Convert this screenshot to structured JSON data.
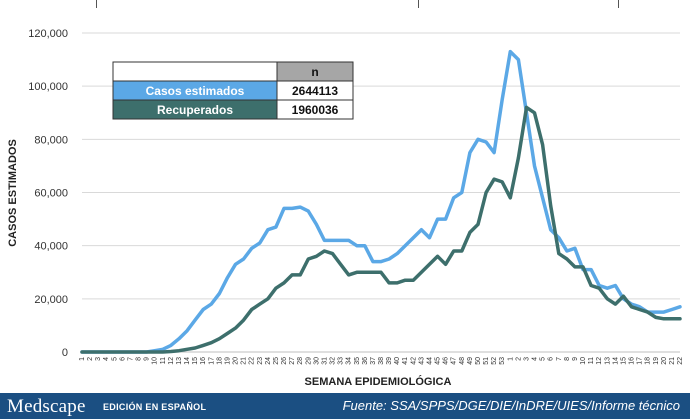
{
  "chart_data": {
    "type": "line",
    "ylabel": "CASOS ESTIMADOS",
    "xlabel": "SEMANA EPIDEMIOLÓGICA",
    "ylim": [
      0,
      120000
    ],
    "y_ticks": [
      "0",
      "20,000",
      "40,000",
      "60,000",
      "80,000",
      "100,000",
      "120,000"
    ],
    "y_tick_values": [
      0,
      20000,
      40000,
      60000,
      80000,
      100000,
      120000
    ],
    "grid": "horizontal",
    "categories": [
      "1",
      "2",
      "3",
      "4",
      "5",
      "6",
      "7",
      "8",
      "9",
      "10",
      "11",
      "12",
      "13",
      "14",
      "15",
      "16",
      "17",
      "18",
      "19",
      "20",
      "21",
      "22",
      "23",
      "24",
      "25",
      "26",
      "27",
      "28",
      "29",
      "30",
      "31",
      "32",
      "33",
      "34",
      "35",
      "36",
      "37",
      "38",
      "39",
      "40",
      "41",
      "42",
      "43",
      "44",
      "45",
      "46",
      "47",
      "48",
      "49",
      "50",
      "51",
      "52",
      "53",
      "1",
      "2",
      "3",
      "4",
      "5",
      "6",
      "7",
      "8",
      "9",
      "10",
      "11",
      "12",
      "13",
      "14",
      "15",
      "16",
      "17",
      "18",
      "19",
      "20",
      "21",
      "22"
    ],
    "series": [
      {
        "name": "Casos estimados",
        "color": "#5ba8e6",
        "values": [
          0,
          0,
          0,
          0,
          0,
          0,
          0,
          0,
          0,
          500,
          1000,
          2500,
          5000,
          8000,
          12000,
          16000,
          18000,
          22000,
          28000,
          33000,
          35000,
          39000,
          41000,
          46000,
          47000,
          54000,
          54000,
          54500,
          53000,
          48000,
          42000,
          42000,
          42000,
          42000,
          40000,
          40000,
          34000,
          34000,
          35000,
          37000,
          40000,
          43000,
          46000,
          43000,
          50000,
          50000,
          58000,
          60000,
          75000,
          80000,
          79000,
          75000,
          95000,
          113000,
          110000,
          90000,
          70000,
          58000,
          46000,
          43000,
          38000,
          39000,
          31000,
          31000,
          25000,
          24000,
          25000,
          20000,
          18000,
          17000,
          15000,
          15000,
          15000,
          16000,
          17000
        ]
      },
      {
        "name": "Recuperados",
        "color": "#3d6f6c",
        "values": [
          0,
          0,
          0,
          0,
          0,
          0,
          0,
          0,
          0,
          0,
          0,
          200,
          500,
          1000,
          1500,
          2500,
          3500,
          5000,
          7000,
          9000,
          12000,
          16000,
          18000,
          20000,
          24000,
          26000,
          29000,
          29000,
          35000,
          36000,
          38000,
          37000,
          33000,
          29000,
          30000,
          30000,
          30000,
          30000,
          26000,
          26000,
          27000,
          27000,
          30000,
          33000,
          36000,
          33000,
          38000,
          38000,
          45000,
          48000,
          60000,
          65000,
          64000,
          58000,
          73000,
          92000,
          90000,
          78000,
          55000,
          37000,
          35000,
          32000,
          32000,
          25000,
          24000,
          20000,
          18000,
          21000,
          17000,
          16000,
          15000,
          13000,
          12500,
          12500,
          12500
        ]
      }
    ],
    "legend_table": {
      "header": "n",
      "rows": [
        {
          "label": "Casos estimados",
          "value": "2644113",
          "color": "#5ba8e6"
        },
        {
          "label": "Recuperados",
          "value": "1960036",
          "color": "#3d6f6c"
        }
      ]
    }
  },
  "footer": {
    "brand": "Medscape",
    "brand_sub": "EDICIÓN EN ESPAÑOL",
    "source": "Fuente: SSA/SPPS/DGE/DIE/InDRE/UIES/Informe técnico",
    "background": "#1b4f82"
  }
}
